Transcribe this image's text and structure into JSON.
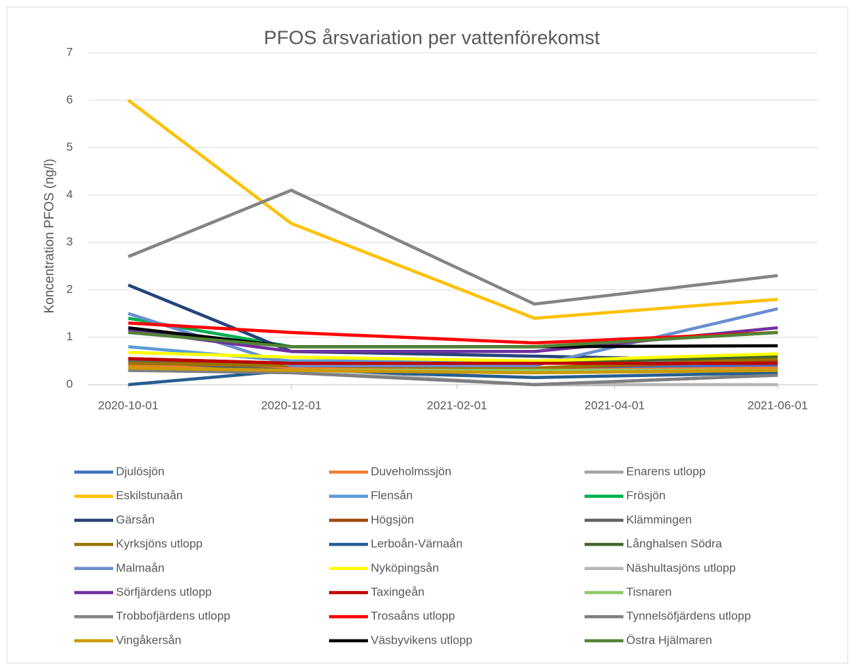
{
  "chart_data": {
    "type": "line",
    "title": "PFOS årsvariation per vattenförekomst",
    "y_label": "Koncentration PFOS (ng/l)",
    "x": [
      "2020-10-01",
      "2020-12-01",
      "2021-03-02",
      "2021-06-01"
    ],
    "xlim": [
      "2020-09-16",
      "2021-06-16"
    ],
    "xticks": [
      "2020-10-01",
      "2020-12-01",
      "2021-02-01",
      "2021-04-01",
      "2021-06-01"
    ],
    "ylim": [
      0,
      7
    ],
    "yticks": [
      0,
      1,
      2,
      3,
      4,
      5,
      6,
      7
    ],
    "grid": true,
    "legend": "bottom",
    "series": [
      {
        "name": "Djulösjön",
        "color": "#4472c4",
        "values": [
          0.45,
          0.4,
          0.35,
          0.4
        ]
      },
      {
        "name": "Duveholmssjön",
        "color": "#ed7d31",
        "values": [
          0.4,
          0.35,
          0.3,
          0.35
        ]
      },
      {
        "name": "Enarens utlopp",
        "color": "#a5a5a5",
        "values": [
          0.3,
          0.3,
          0.25,
          0.3
        ]
      },
      {
        "name": "Eskilstunaån",
        "color": "#ffc000",
        "values": [
          6,
          3.4,
          1.4,
          1.8
        ]
      },
      {
        "name": "Flensån",
        "color": "#5b9bd5",
        "values": [
          0.8,
          0.5,
          0.5,
          0.5
        ]
      },
      {
        "name": "Frösjön",
        "color": "#00b050",
        "values": [
          1.4,
          0.8,
          0.8,
          1.1
        ]
      },
      {
        "name": "Gärsån",
        "color": "#264478",
        "values": [
          2.1,
          0.7,
          0.6,
          0.5
        ]
      },
      {
        "name": "Högsjön",
        "color": "#9e480e",
        "values": [
          0.5,
          0.4,
          0.35,
          0.5
        ]
      },
      {
        "name": "Klämmingen",
        "color": "#636363",
        "values": [
          0.5,
          0.3,
          0,
          0.2
        ]
      },
      {
        "name": "Kyrksjöns utlopp",
        "color": "#997300",
        "values": [
          0.45,
          0.4,
          0.35,
          0.55
        ]
      },
      {
        "name": "Lerboån-Värnaån",
        "color": "#255e91",
        "values": [
          0,
          0.3,
          0.15,
          0.25
        ]
      },
      {
        "name": "Långhalsen Södra",
        "color": "#43682b",
        "values": [
          0.55,
          0.45,
          0.45,
          0.6
        ]
      },
      {
        "name": "Malmaån",
        "color": "#698ed0",
        "values": [
          1.5,
          0.4,
          0.4,
          1.6
        ]
      },
      {
        "name": "Nyköpingsån",
        "color": "#ffff00",
        "values": [
          0.68,
          0.58,
          0.5,
          0.65
        ]
      },
      {
        "name": "Näshultasjöns utlopp",
        "color": "#b7b7b7",
        "values": [
          0.3,
          0.3,
          0,
          0
        ]
      },
      {
        "name": "Sörfjärdens utlopp",
        "color": "#7030a0",
        "values": [
          1.15,
          0.7,
          0.7,
          1.2
        ]
      },
      {
        "name": "Taxingeån",
        "color": "#c00000",
        "values": [
          0.55,
          0.45,
          0.45,
          0.45
        ]
      },
      {
        "name": "Tisnaren",
        "color": "#8fc86b",
        "values": [
          0.35,
          0.3,
          0.3,
          0.3
        ]
      },
      {
        "name": "Trobbofjärdens utlopp",
        "color": "#848484",
        "values": [
          2.7,
          4.1,
          1.7,
          2.3
        ]
      },
      {
        "name": "Trosaåns utlopp",
        "color": "#ff0000",
        "values": [
          1.3,
          1.1,
          0.88,
          1.1
        ]
      },
      {
        "name": "Tynnelsöfjärdens utlopp",
        "color": "#7f7f7f",
        "values": [
          0.3,
          0.25,
          0,
          0.2
        ]
      },
      {
        "name": "Vingåkersån",
        "color": "#cc9a00",
        "values": [
          0.35,
          0.3,
          0.25,
          0.3
        ]
      },
      {
        "name": "Väsbyvikens utlopp",
        "color": "#000000",
        "values": [
          1.2,
          0.8,
          0.8,
          0.82
        ]
      },
      {
        "name": "Östra Hjälmaren",
        "color": "#548235",
        "values": [
          1.1,
          0.8,
          0.8,
          1.1
        ]
      }
    ]
  }
}
